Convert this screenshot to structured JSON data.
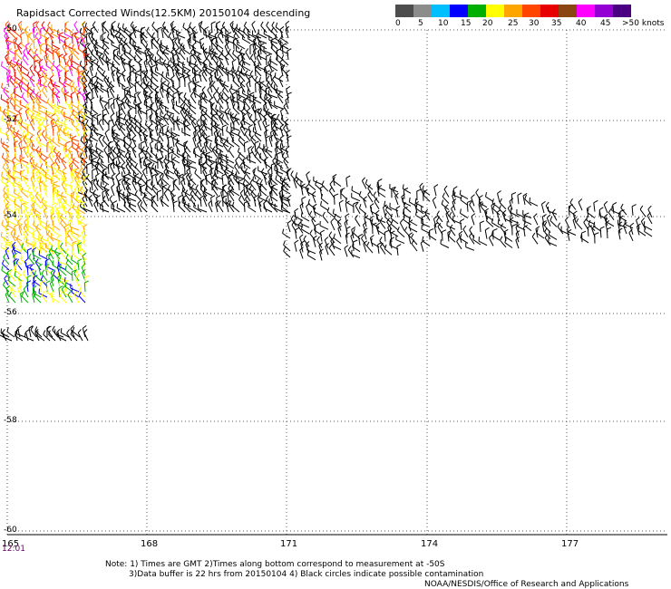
{
  "title": "Rapidsact Corrected Winds(12.5KM) 20150104 descending",
  "legend": {
    "colors": [
      "#4d4d4d",
      "#8c8c8c",
      "#00bfff",
      "#0000ff",
      "#00b000",
      "#ffff00",
      "#ffa500",
      "#ff4500",
      "#e80000",
      "#8b4513",
      "#ff00ff",
      "#9400d3",
      "#4b0082"
    ],
    "labels": [
      "0",
      "5",
      "10",
      "15",
      "20",
      "25",
      "30",
      "35",
      "40",
      "45",
      ">50 knots"
    ]
  },
  "lat_labels": [
    "-50",
    "-52",
    "-54",
    "-56",
    "-58",
    "-60"
  ],
  "lon_labels": [
    "165",
    "168",
    "171",
    "174",
    "177"
  ],
  "time_label": "12:01",
  "notes": {
    "line1": "Note: 1) Times are GMT 2)Times along bottom correspond to measurement at -50S",
    "line2": "3)Data buffer is 22 hrs from 20150104 4) Black circles indicate possible contamination",
    "line3": "NOAA/NESDIS/Office of Research and Applications"
  }
}
